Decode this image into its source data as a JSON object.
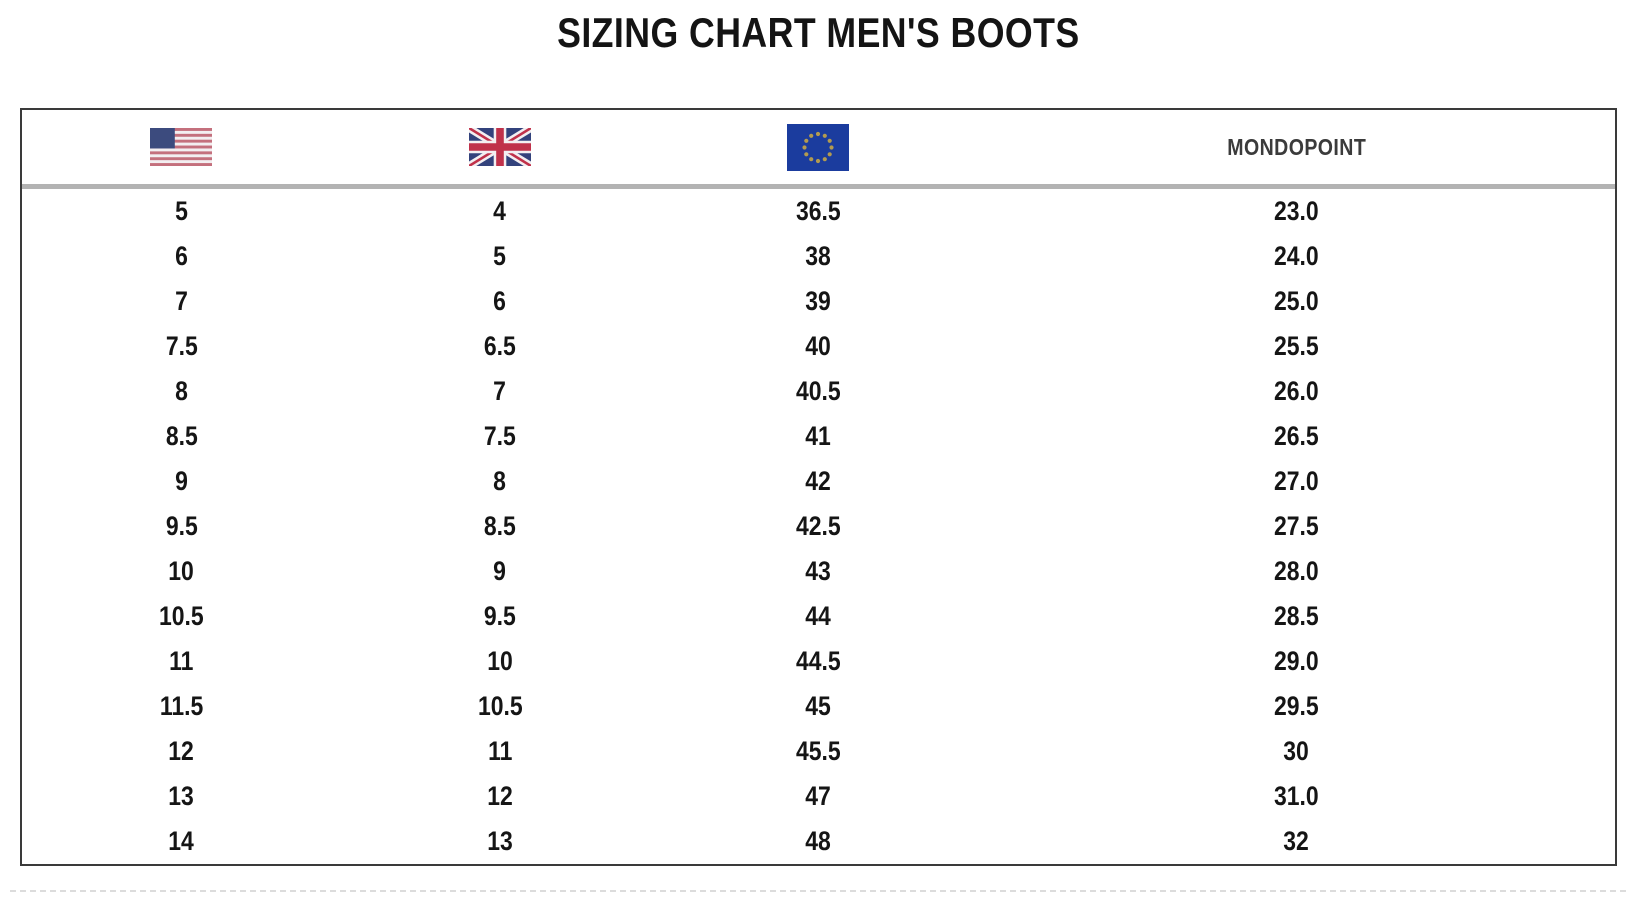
{
  "page": {
    "title": "SIZING CHART MEN'S BOOTS"
  },
  "table": {
    "header": {
      "columns": [
        {
          "key": "us",
          "icon": "us-flag-icon",
          "label": ""
        },
        {
          "key": "uk",
          "icon": "uk-flag-icon",
          "label": ""
        },
        {
          "key": "eu",
          "icon": "eu-flag-icon",
          "label": ""
        },
        {
          "key": "mondopoint",
          "icon": null,
          "label": "MONDOPOINT"
        }
      ]
    }
  },
  "chart_data": {
    "type": "table",
    "title": "SIZING CHART MEN'S BOOTS",
    "columns": [
      "US",
      "UK",
      "EU",
      "MONDOPOINT"
    ],
    "rows": [
      [
        "5",
        "4",
        "36.5",
        "23.0"
      ],
      [
        "6",
        "5",
        "38",
        "24.0"
      ],
      [
        "7",
        "6",
        "39",
        "25.0"
      ],
      [
        "7.5",
        "6.5",
        "40",
        "25.5"
      ],
      [
        "8",
        "7",
        "40.5",
        "26.0"
      ],
      [
        "8.5",
        "7.5",
        "41",
        "26.5"
      ],
      [
        "9",
        "8",
        "42",
        "27.0"
      ],
      [
        "9.5",
        "8.5",
        "42.5",
        "27.5"
      ],
      [
        "10",
        "9",
        "43",
        "28.0"
      ],
      [
        "10.5",
        "9.5",
        "44",
        "28.5"
      ],
      [
        "11",
        "10",
        "44.5",
        "29.0"
      ],
      [
        "11.5",
        "10.5",
        "45",
        "29.5"
      ],
      [
        "12",
        "11",
        "45.5",
        "30"
      ],
      [
        "13",
        "12",
        "47",
        "31.0"
      ],
      [
        "14",
        "13",
        "48",
        "32"
      ]
    ]
  },
  "colors": {
    "title-text": "#141414",
    "text": "#151515",
    "mondopoint-text": "#3b3b3b",
    "table-border": "#3a3a3a",
    "header-divider": "#b3b3b3",
    "flag-white": "#f3eff1",
    "us-flag-red": "#c4707d",
    "us-flag-blue": "#3c4b7e",
    "uk-flag-blue": "#33427c",
    "uk-flag-red": "#c0314a",
    "eu-flag-blue": "#1b3c9e",
    "eu-flag-star": "#b39b4f"
  }
}
